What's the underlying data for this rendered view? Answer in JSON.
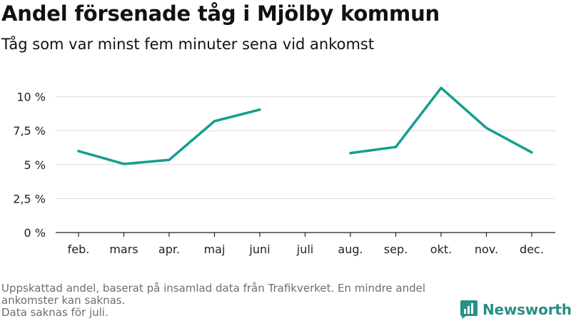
{
  "header": {
    "title": "Andel försenade tåg i Mjölby kommun",
    "subtitle": "Tåg som var minst fem minuter sena vid ankomst"
  },
  "footnote": {
    "line1": "Uppskattad andel, baserat på insamlad data från Trafikverket. En mindre andel ankomster kan saknas.",
    "line2": "Data saknas för juli."
  },
  "brand": {
    "name": "Newsworthy",
    "color": "#2a8f85",
    "icon": "bar-chart-logo-icon"
  },
  "chart_data": {
    "type": "line",
    "categories": [
      "feb.",
      "mars",
      "apr.",
      "maj",
      "juni",
      "juli",
      "aug.",
      "sep.",
      "okt.",
      "nov.",
      "dec."
    ],
    "series": [
      {
        "name": "",
        "color": "#159e8f",
        "values": [
          6.0,
          5.05,
          5.35,
          8.2,
          9.05,
          null,
          5.85,
          6.3,
          10.65,
          7.7,
          5.9
        ]
      }
    ],
    "yticks": [
      0,
      2.5,
      5,
      7.5,
      10
    ],
    "ytick_labels": [
      "0 %",
      "2,5 %",
      "5 %",
      "7,5 %",
      "10 %"
    ],
    "ylim": [
      0,
      11.5
    ],
    "grid": true,
    "title": "Andel försenade tåg i Mjölby kommun",
    "xlabel": "",
    "ylabel": ""
  }
}
